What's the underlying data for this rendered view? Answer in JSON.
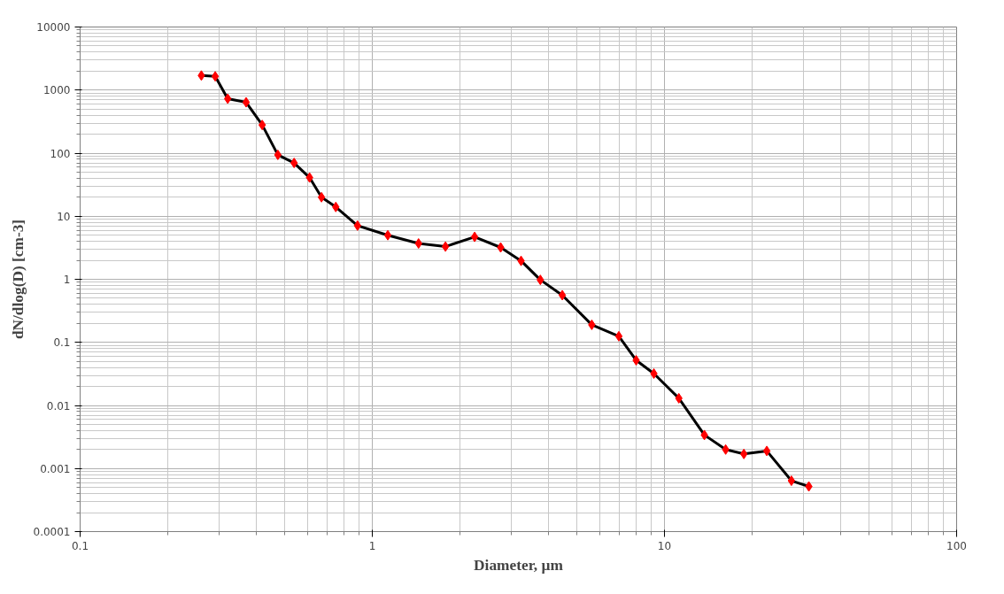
{
  "chart_data": {
    "type": "line",
    "xlabel": "Diameter, µm",
    "ylabel": "dN/dlog(D) [cm-3]",
    "x": [
      0.26,
      0.29,
      0.32,
      0.37,
      0.42,
      0.475,
      0.54,
      0.61,
      0.67,
      0.75,
      0.89,
      1.13,
      1.44,
      1.78,
      2.24,
      2.75,
      3.23,
      3.76,
      4.47,
      5.64,
      6.98,
      8.0,
      9.2,
      11.2,
      13.7,
      16.2,
      18.7,
      22.4,
      27.2,
      31.2
    ],
    "series": [
      {
        "color": "#000000",
        "colors": [
          "#ff0000",
          "#ff0000",
          "#ff0000",
          "#ff0000",
          "#ff0000",
          "#ff0000",
          "#ff0000",
          "#ff0000",
          "#ff0000",
          "#ff0000",
          "#ff0000",
          "#ff0000",
          "#ff0000",
          "#ff0000",
          "#ff0000",
          "#ff0000",
          "#ff0000",
          "#ff0000",
          "#ff0000",
          "#ff0000",
          "#ff0000",
          "#ff0000",
          "#ff0000",
          "#ff0000",
          "#ff0000",
          "#ff0000",
          "#ff0000",
          "#ff0000",
          "#ff0000",
          "#ff0000"
        ],
        "values": [
          1700,
          1650,
          730,
          640,
          280,
          94,
          70,
          41,
          20,
          14,
          7.1,
          5,
          3.7,
          3.3,
          4.7,
          3.2,
          1.96,
          0.98,
          0.56,
          0.19,
          0.125,
          0.052,
          0.032,
          0.013,
          0.0034,
          0.002,
          0.0017,
          0.0019,
          0.00064,
          0.00052
        ]
      }
    ],
    "log": "xy",
    "xlim": [
      0.1,
      100
    ],
    "ylim": [
      0.0001,
      10000
    ],
    "xticks": [
      0.1,
      1,
      10,
      100
    ],
    "yticks": [
      0.0001,
      0.001,
      0.01,
      0.1,
      1,
      10,
      100,
      1000,
      10000
    ],
    "grid": true,
    "marker": "diamond",
    "line_style": "solid"
  }
}
